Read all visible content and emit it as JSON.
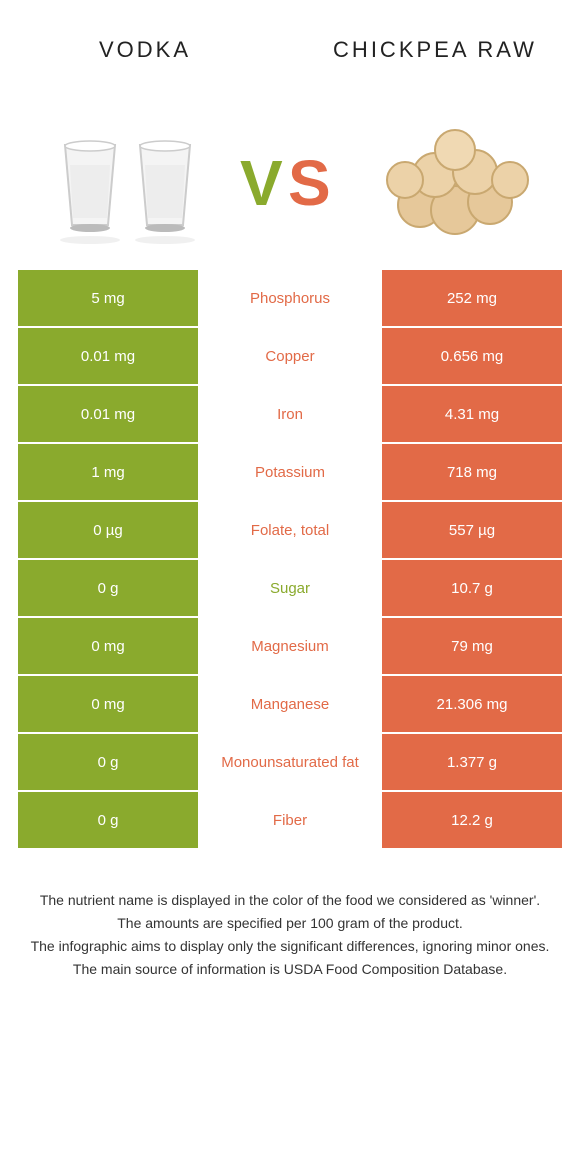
{
  "header": {
    "left": "VODKA",
    "right": "CHICKPEA RAW"
  },
  "vs": {
    "v_color": "#8aaa2d",
    "s_color": "#e26a47"
  },
  "colors": {
    "left_bg": "#8aaa2d",
    "right_bg": "#e26a47",
    "mid_bg": "#ffffff"
  },
  "rows": [
    {
      "left": "5 mg",
      "mid": "Phosphorus",
      "right": "252 mg",
      "mid_color": "#e26a47"
    },
    {
      "left": "0.01 mg",
      "mid": "Copper",
      "right": "0.656 mg",
      "mid_color": "#e26a47"
    },
    {
      "left": "0.01 mg",
      "mid": "Iron",
      "right": "4.31 mg",
      "mid_color": "#e26a47"
    },
    {
      "left": "1 mg",
      "mid": "Potassium",
      "right": "718 mg",
      "mid_color": "#e26a47"
    },
    {
      "left": "0 µg",
      "mid": "Folate, total",
      "right": "557 µg",
      "mid_color": "#e26a47"
    },
    {
      "left": "0 g",
      "mid": "Sugar",
      "right": "10.7 g",
      "mid_color": "#8aaa2d"
    },
    {
      "left": "0 mg",
      "mid": "Magnesium",
      "right": "79 mg",
      "mid_color": "#e26a47"
    },
    {
      "left": "0 mg",
      "mid": "Manganese",
      "right": "21.306 mg",
      "mid_color": "#e26a47"
    },
    {
      "left": "0 g",
      "mid": "Monounsaturated fat",
      "right": "1.377 g",
      "mid_color": "#e26a47"
    },
    {
      "left": "0 g",
      "mid": "Fiber",
      "right": "12.2 g",
      "mid_color": "#e26a47"
    }
  ],
  "footer": {
    "line1": "The nutrient name is displayed in the color of the food we considered as 'winner'.",
    "line2": "The amounts are specified per 100 gram of the product.",
    "line3": "The infographic aims to display only the significant differences, ignoring minor ones.",
    "line4": "The main source of information is USDA Food Composition Database."
  }
}
